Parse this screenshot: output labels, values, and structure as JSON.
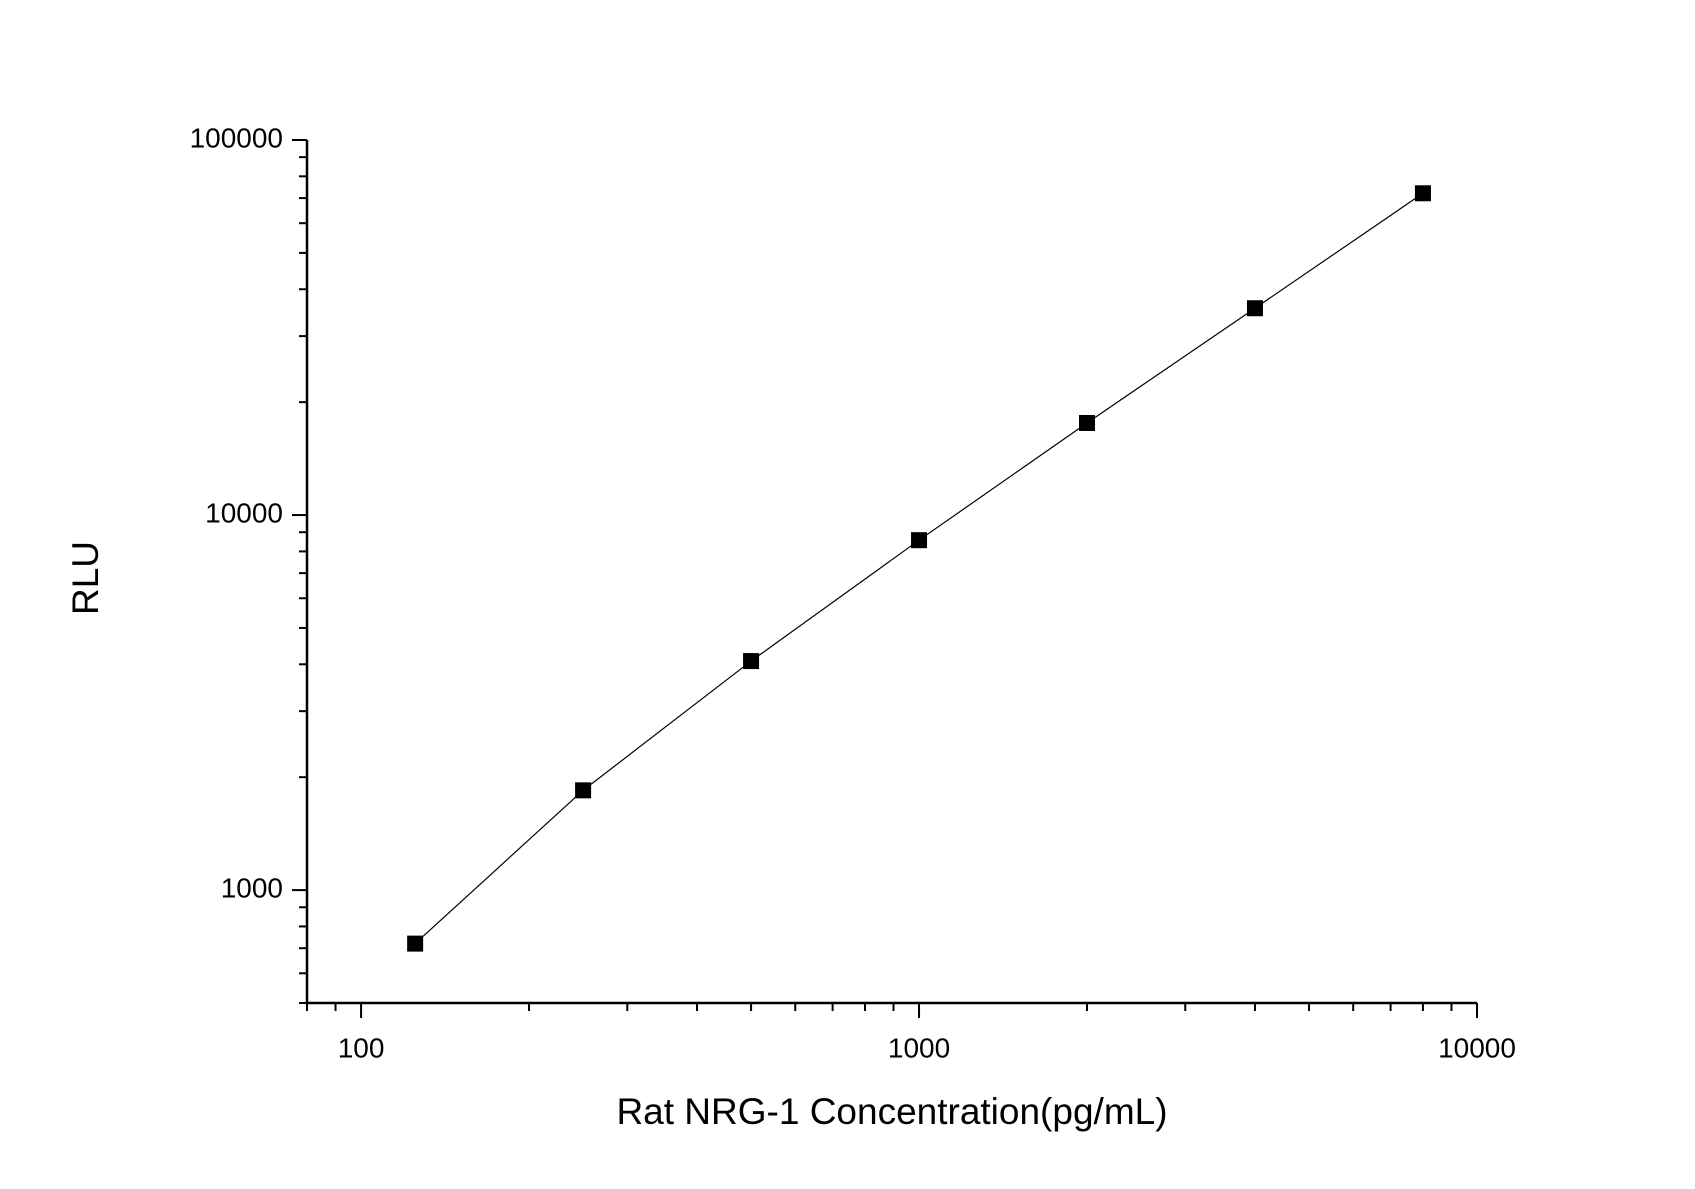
{
  "chart_data": {
    "type": "line",
    "x_label": "Rat NRG-1 Concentration(pg/mL)",
    "y_label": "RLU",
    "x": [
      125,
      250,
      500,
      1000,
      2000,
      4000,
      8000
    ],
    "series": [
      {
        "name": "RLU",
        "color": "#000000",
        "values": [
          720,
          1845,
          4080,
          8570,
          17600,
          35600,
          72100
        ]
      }
    ],
    "xscale": "log",
    "yscale": "log",
    "xlim": [
      80,
      10000
    ],
    "ylim": [
      500,
      100000
    ],
    "xticks": [
      100,
      1000,
      10000
    ],
    "yticks": [
      1000,
      10000,
      100000
    ],
    "marker": "square",
    "grid": false
  }
}
